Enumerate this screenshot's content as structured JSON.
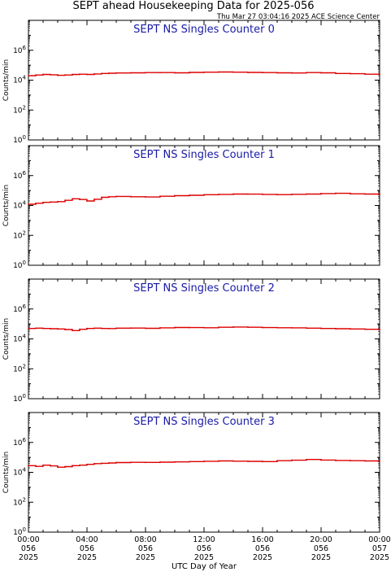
{
  "header": {
    "title": "SEPT ahead Housekeeping Data for 2025-056",
    "timestamp": "Thu Mar 27 03:04:16 2025 ACE Science Center"
  },
  "colors": {
    "series": "#dd0000",
    "panel_title": "#1a1aa6",
    "axes": "#000000"
  },
  "chart_data": [
    {
      "type": "line",
      "title": "SEPT NS Singles Counter 0",
      "xlabel": "",
      "ylabel": "Counts/min",
      "yscale": "log",
      "ylim": [
        1,
        100000000
      ],
      "xlim": [
        0,
        24
      ],
      "grid": false,
      "x": [
        0,
        0.5,
        1,
        1.5,
        2,
        2.5,
        3,
        3.5,
        4,
        4.5,
        5,
        5.5,
        6,
        7,
        8,
        9,
        10,
        11,
        12,
        13,
        14,
        15,
        16,
        17,
        18,
        19,
        20,
        21,
        22,
        23,
        24
      ],
      "values": [
        20000,
        22000,
        24000,
        23000,
        21000,
        22000,
        24000,
        25000,
        24000,
        26000,
        28000,
        29000,
        30000,
        31000,
        32000,
        32000,
        31000,
        33000,
        34000,
        35000,
        34000,
        33000,
        32000,
        31000,
        30000,
        32000,
        31000,
        28000,
        27000,
        25000,
        24000
      ]
    },
    {
      "type": "line",
      "title": "SEPT NS Singles Counter 1",
      "xlabel": "",
      "ylabel": "Counts/min",
      "yscale": "log",
      "ylim": [
        1,
        100000000
      ],
      "xlim": [
        0,
        24
      ],
      "grid": false,
      "x": [
        0,
        0.5,
        1,
        1.5,
        2,
        2.5,
        3,
        3.5,
        4,
        4.5,
        5,
        5.5,
        6,
        7,
        8,
        9,
        10,
        11,
        12,
        13,
        14,
        15,
        16,
        17,
        18,
        19,
        20,
        21,
        22,
        23,
        24
      ],
      "values": [
        12000,
        14000,
        16000,
        17000,
        18000,
        22000,
        28000,
        25000,
        20000,
        26000,
        35000,
        38000,
        40000,
        38000,
        37000,
        41000,
        45000,
        48000,
        52000,
        55000,
        58000,
        57000,
        55000,
        53000,
        56000,
        58000,
        62000,
        65000,
        60000,
        58000,
        57000
      ]
    },
    {
      "type": "line",
      "title": "SEPT NS Singles Counter 2",
      "xlabel": "",
      "ylabel": "Counts/min",
      "yscale": "log",
      "ylim": [
        1,
        100000000
      ],
      "xlim": [
        0,
        24
      ],
      "grid": false,
      "x": [
        0,
        0.5,
        1,
        1.5,
        2,
        2.5,
        3,
        3.5,
        4,
        4.5,
        5,
        5.5,
        6,
        7,
        8,
        9,
        10,
        11,
        12,
        13,
        14,
        15,
        16,
        17,
        18,
        19,
        20,
        21,
        22,
        23,
        24
      ],
      "values": [
        50000,
        52000,
        50000,
        48000,
        46000,
        42000,
        36000,
        44000,
        50000,
        52000,
        50000,
        49000,
        52000,
        53000,
        51000,
        55000,
        58000,
        57000,
        56000,
        60000,
        62000,
        60000,
        57000,
        56000,
        55000,
        52000,
        50000,
        48000,
        46000,
        44000,
        42000
      ]
    },
    {
      "type": "line",
      "title": "SEPT NS Singles Counter 3",
      "xlabel": "UTC Day of Year",
      "ylabel": "Counts/min",
      "yscale": "log",
      "ylim": [
        1,
        100000000
      ],
      "xlim": [
        0,
        24
      ],
      "grid": false,
      "x": [
        0,
        0.5,
        1,
        1.5,
        2,
        2.5,
        3,
        3.5,
        4,
        4.5,
        5,
        5.5,
        6,
        7,
        8,
        9,
        10,
        11,
        12,
        13,
        14,
        15,
        16,
        17,
        18,
        19,
        20,
        21,
        22,
        23,
        24
      ],
      "values": [
        28000,
        25000,
        30000,
        27000,
        22000,
        24000,
        28000,
        30000,
        34000,
        38000,
        40000,
        42000,
        45000,
        47000,
        46000,
        48000,
        50000,
        52000,
        55000,
        58000,
        56000,
        54000,
        52000,
        60000,
        65000,
        72000,
        66000,
        62000,
        60000,
        58000,
        56000
      ]
    }
  ],
  "yticks": [
    {
      "exp": 0,
      "base": "10",
      "sup": "0"
    },
    {
      "exp": 2,
      "base": "10",
      "sup": "2"
    },
    {
      "exp": 4,
      "base": "10",
      "sup": "4"
    },
    {
      "exp": 6,
      "base": "10",
      "sup": "6"
    }
  ],
  "xticks": [
    {
      "hour": 0,
      "lines": [
        "00:00",
        "056",
        "2025"
      ]
    },
    {
      "hour": 4,
      "lines": [
        "04:00",
        "056",
        "2025"
      ]
    },
    {
      "hour": 8,
      "lines": [
        "08:00",
        "056",
        "2025"
      ]
    },
    {
      "hour": 12,
      "lines": [
        "12:00",
        "056",
        "2025"
      ]
    },
    {
      "hour": 16,
      "lines": [
        "16:00",
        "056",
        "2025"
      ]
    },
    {
      "hour": 20,
      "lines": [
        "20:00",
        "056",
        "2025"
      ]
    },
    {
      "hour": 24,
      "lines": [
        "00:00",
        "057",
        "2025"
      ]
    }
  ]
}
